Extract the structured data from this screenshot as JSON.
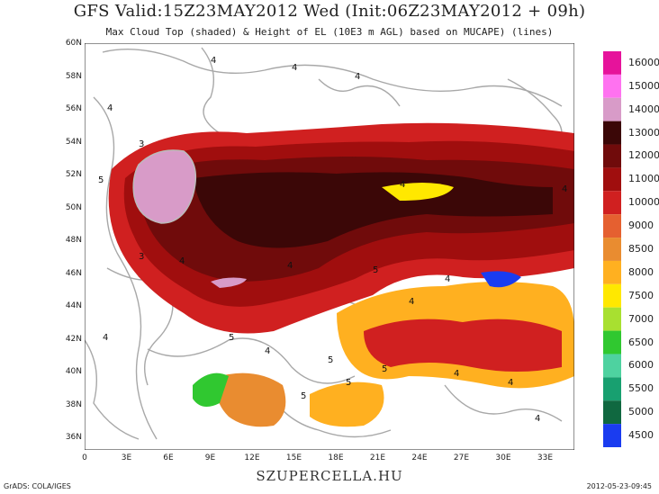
{
  "title": "GFS Valid:15Z23MAY2012 Wed (Init:06Z23MAY2012 + 09h)",
  "subtitle": "Max Cloud Top (shaded) & Height of EL (10E3 m AGL) based on MUCAPE) (lines)",
  "footer_site": "SZUPERCELLA.HU",
  "footer_grads": "GrADS: COLA/IGES",
  "footer_date": "2012-05-23-09:45",
  "lat_labels": [
    "60N",
    "58N",
    "56N",
    "54N",
    "52N",
    "50N",
    "48N",
    "46N",
    "44N",
    "42N",
    "40N",
    "38N",
    "36N"
  ],
  "lon_labels": [
    "0",
    "3E",
    "6E",
    "9E",
    "12E",
    "15E",
    "18E",
    "21E",
    "24E",
    "27E",
    "30E",
    "33E"
  ],
  "colorbar": [
    {
      "value": "16000",
      "color": "#e6139b"
    },
    {
      "value": "15000",
      "color": "#ff72f0"
    },
    {
      "value": "14000",
      "color": "#d89bc8"
    },
    {
      "value": "13000",
      "color": "#3b0707"
    },
    {
      "value": "12000",
      "color": "#700b0b"
    },
    {
      "value": "11000",
      "color": "#a00e0e"
    },
    {
      "value": "10000",
      "color": "#d02020"
    },
    {
      "value": "9000",
      "color": "#e56030"
    },
    {
      "value": "8500",
      "color": "#e98c30"
    },
    {
      "value": "8000",
      "color": "#ffb020"
    },
    {
      "value": "7500",
      "color": "#ffe800"
    },
    {
      "value": "7000",
      "color": "#a8e030"
    },
    {
      "value": "6500",
      "color": "#30c830"
    },
    {
      "value": "6000",
      "color": "#4ed2a0"
    },
    {
      "value": "5500",
      "color": "#18a070"
    },
    {
      "value": "5000",
      "color": "#106840"
    },
    {
      "value": "4500",
      "color": "#1a3cf0"
    }
  ],
  "contour_label": "4"
}
